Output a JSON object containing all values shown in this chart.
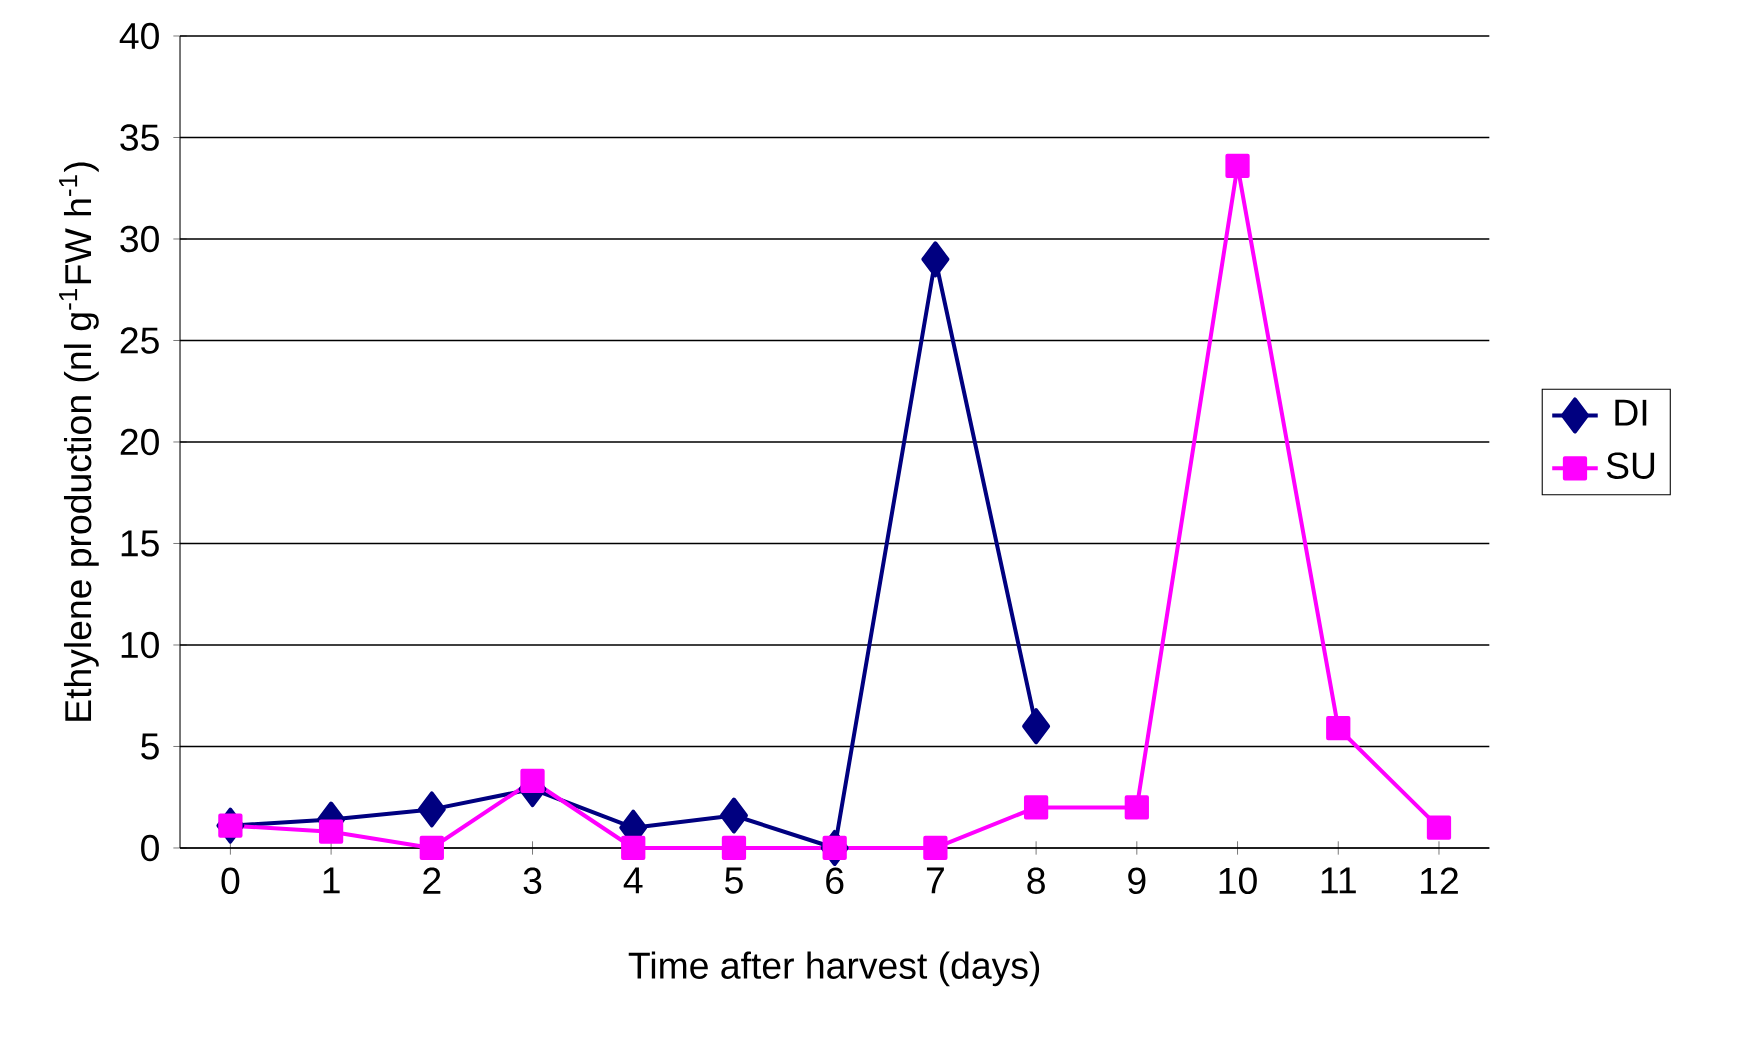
{
  "chart_data": {
    "type": "line",
    "xlabel": "Time after harvest (days)",
    "ylabel": "Ethylene production (nl g$^{-1}$FW h$^{-1}$)",
    "categories": [
      "0",
      "1",
      "2",
      "3",
      "4",
      "5",
      "6",
      "7",
      "8",
      "9",
      "10",
      "11",
      "12"
    ],
    "series": [
      {
        "name": "DI",
        "color": "#000080",
        "marker": "diamond",
        "values": [
          1.1,
          1.4,
          1.9,
          2.9,
          1.0,
          1.6,
          0,
          29,
          6,
          null,
          null,
          null,
          null
        ]
      },
      {
        "name": "SU",
        "color": "#ff00ff",
        "marker": "square",
        "values": [
          1.1,
          0.8,
          0,
          3.3,
          0,
          0,
          0,
          0,
          2,
          2,
          33.6,
          5.9,
          1
        ]
      }
    ],
    "ylim": [
      0,
      40
    ],
    "yticks": [
      0,
      5,
      10,
      15,
      20,
      25,
      30,
      35,
      40
    ],
    "grid": "y",
    "legend": "right"
  }
}
